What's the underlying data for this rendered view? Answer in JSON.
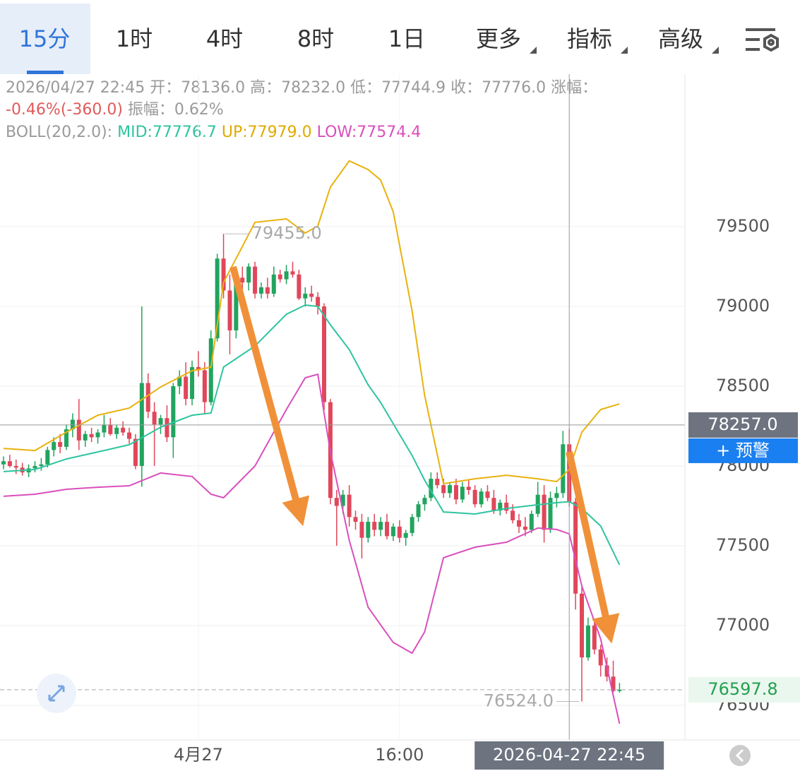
{
  "tabs": [
    "15分",
    "1时",
    "4时",
    "8时",
    "1日",
    "更多",
    "指标",
    "高级"
  ],
  "info": {
    "line1": "2026/04/27 22:45 开：78136.0 高：78232.0 低：77744.9 收：77776.0 涨幅：",
    "change": "-0.46%(-360.0)",
    "amplitude": " 振幅：0.62%",
    "boll": "BOLL(20,2.0): ",
    "mid": "MID:77776.7 ",
    "up": "UP:77979.0 ",
    "low": "LOW:77574.4"
  },
  "chart_data": {
    "type": "candlestick",
    "xlim": [
      -0.56,
      108.4
    ],
    "ylim": [
      76283,
      80456
    ],
    "yticks": [
      76500,
      77000,
      77500,
      78000,
      78500,
      79000,
      79500
    ],
    "xticks": [
      {
        "value": 31,
        "label": "4月27"
      },
      {
        "value": 63,
        "label": "16:00"
      }
    ],
    "grid": true,
    "up_color": "#21a45e",
    "down_color": "#e0475a",
    "candles": {
      "open": [
        78010,
        78030,
        78000,
        77990,
        77960,
        77985,
        78000,
        78010,
        78100,
        78150,
        78120,
        78230,
        78290,
        78160,
        78200,
        78180,
        78210,
        78260,
        78200,
        78240,
        78210,
        78170,
        78000,
        78520,
        78340,
        78260,
        78300,
        78180,
        78500,
        78560,
        78420,
        78620,
        78600,
        78400,
        78800,
        79300,
        79100,
        78850,
        79180,
        79150,
        79250,
        79080,
        79120,
        79080,
        79200,
        79170,
        79220,
        79200,
        79050,
        79080,
        79060,
        79000,
        78400,
        77800,
        77750,
        77820,
        77680,
        77650,
        77550,
        77650,
        77600,
        77650,
        77560,
        77620,
        77550,
        77580,
        77680,
        77760,
        77800,
        77920,
        77880,
        77830,
        77880,
        77790,
        77870,
        77850,
        77760,
        77840,
        77800,
        77720,
        77770,
        77720,
        77660,
        77620,
        77600,
        77700,
        77820,
        77600,
        77800,
        77830,
        78136,
        77776,
        77200,
        76800,
        77000,
        76850,
        76750,
        76680,
        76590
      ],
      "high": [
        78060,
        78070,
        78040,
        78020,
        78010,
        78030,
        78050,
        78120,
        78180,
        78200,
        78260,
        78330,
        78420,
        78220,
        78240,
        78230,
        78320,
        78300,
        78260,
        78280,
        78240,
        78200,
        79000,
        78580,
        78400,
        78320,
        78380,
        78520,
        78600,
        78650,
        78660,
        78720,
        78650,
        78850,
        79330,
        79455,
        79200,
        79220,
        79250,
        79270,
        79280,
        79150,
        79180,
        79250,
        79230,
        79260,
        79280,
        79230,
        79120,
        79130,
        79090,
        79020,
        78420,
        77850,
        77850,
        77880,
        77720,
        77700,
        77680,
        77700,
        77680,
        77700,
        77640,
        77660,
        77600,
        77700,
        77780,
        77820,
        77960,
        77960,
        77920,
        77900,
        77920,
        77900,
        77910,
        77880,
        77860,
        77880,
        77850,
        77790,
        77820,
        77760,
        77700,
        77680,
        77720,
        77900,
        77880,
        77840,
        77870,
        78220,
        78232,
        77800,
        77250,
        77050,
        77020,
        76880,
        76800,
        76780,
        76640
      ],
      "low": [
        77980,
        77990,
        77950,
        77940,
        77930,
        77960,
        77970,
        77990,
        78060,
        78080,
        78100,
        78180,
        78100,
        78120,
        78150,
        78140,
        78180,
        78190,
        78170,
        78190,
        78140,
        77980,
        77870,
        78300,
        78000,
        78200,
        78150,
        78050,
        78450,
        78380,
        78380,
        78560,
        78330,
        78380,
        78780,
        79050,
        78700,
        78800,
        79100,
        79100,
        79050,
        79050,
        79050,
        79060,
        79150,
        79140,
        79180,
        79040,
        79000,
        79030,
        78950,
        78350,
        77760,
        77500,
        77700,
        77620,
        77600,
        77420,
        77520,
        77560,
        77560,
        77540,
        77530,
        77520,
        77500,
        77560,
        77650,
        77720,
        77780,
        77860,
        77800,
        77800,
        77760,
        77770,
        77820,
        77740,
        77740,
        77780,
        77700,
        77690,
        77700,
        77640,
        77580,
        77560,
        77580,
        77680,
        77520,
        77580,
        77740,
        77800,
        77744.9,
        77100,
        76524,
        76780,
        76820,
        76680,
        76650,
        76580,
        76580
      ],
      "close": [
        78030,
        78000,
        77990,
        77960,
        77985,
        78000,
        78010,
        78100,
        78150,
        78120,
        78230,
        78290,
        78160,
        78200,
        78180,
        78210,
        78260,
        78200,
        78240,
        78210,
        78170,
        78000,
        78520,
        78340,
        78260,
        78300,
        78180,
        78500,
        78560,
        78420,
        78620,
        78600,
        78400,
        78800,
        79300,
        79100,
        78850,
        79180,
        79150,
        79250,
        79080,
        79120,
        79080,
        79200,
        79170,
        79220,
        79200,
        79050,
        79080,
        79060,
        79000,
        78400,
        77800,
        77750,
        77820,
        77680,
        77650,
        77550,
        77650,
        77600,
        77650,
        77560,
        77620,
        77550,
        77580,
        77680,
        77760,
        77800,
        77920,
        77880,
        77830,
        77880,
        77790,
        77870,
        77850,
        77760,
        77840,
        77800,
        77720,
        77770,
        77720,
        77660,
        77620,
        77600,
        77700,
        77820,
        77600,
        77800,
        77830,
        78136,
        77776,
        77200,
        76800,
        77000,
        76850,
        76750,
        76680,
        76590,
        76597.8
      ]
    },
    "lines": [
      {
        "color": "#e9b20e",
        "x": [
          0,
          5,
          10,
          15,
          20,
          25,
          30,
          33,
          35,
          40,
          45,
          48,
          50,
          52,
          55,
          58,
          60,
          62,
          65,
          67,
          70,
          75,
          80,
          85,
          88,
          90,
          92,
          95,
          98
        ],
        "values": [
          78110,
          78097,
          78212,
          78318,
          78363,
          78495,
          78597,
          78619,
          79150,
          79527,
          79549,
          79460,
          79504,
          79748,
          79912,
          79858,
          79792,
          79593,
          78973,
          78442,
          77889,
          77920,
          77942,
          77920,
          77902,
          77979,
          78212,
          78354,
          78389
        ]
      },
      {
        "color": "#2ec4a0",
        "x": [
          0,
          5,
          10,
          15,
          20,
          25,
          30,
          33,
          35,
          40,
          45,
          48,
          50,
          52,
          55,
          58,
          60,
          62,
          65,
          67,
          70,
          75,
          80,
          85,
          88,
          90,
          92,
          95,
          98
        ],
        "values": [
          77965,
          77978,
          78044,
          78088,
          78133,
          78243,
          78318,
          78332,
          78620,
          78752,
          78951,
          79009,
          79000,
          78885,
          78730,
          78509,
          78398,
          78265,
          78066,
          77911,
          77712,
          77699,
          77734,
          77757,
          77770,
          77776.7,
          77734,
          77624,
          77380
        ]
      },
      {
        "color": "#d94fbd",
        "x": [
          0,
          5,
          10,
          15,
          20,
          25,
          30,
          33,
          35,
          40,
          45,
          48,
          50,
          52,
          55,
          58,
          60,
          62,
          65,
          67,
          70,
          75,
          80,
          85,
          88,
          90,
          92,
          95,
          98
        ],
        "values": [
          77810,
          77823,
          77854,
          77867,
          77876,
          77956,
          77934,
          77823,
          77801,
          78000,
          78354,
          78553,
          78575,
          78088,
          77535,
          77115,
          77004,
          76894,
          76827,
          76960,
          77425,
          77491,
          77522,
          77611,
          77602,
          77574.4,
          77248,
          76916,
          76385
        ]
      }
    ],
    "high_marker": {
      "x": 35,
      "value": 79455,
      "label": "79455.0"
    },
    "low_marker": {
      "x": 92,
      "value": 76524,
      "label": "76524.0"
    },
    "crosshair": {
      "x": 90,
      "price": 78257,
      "price_label": "78257.0",
      "time_label": "2026-04-27 22:45"
    },
    "alert_button": "+ 预警",
    "last_price": 76597.8
  }
}
